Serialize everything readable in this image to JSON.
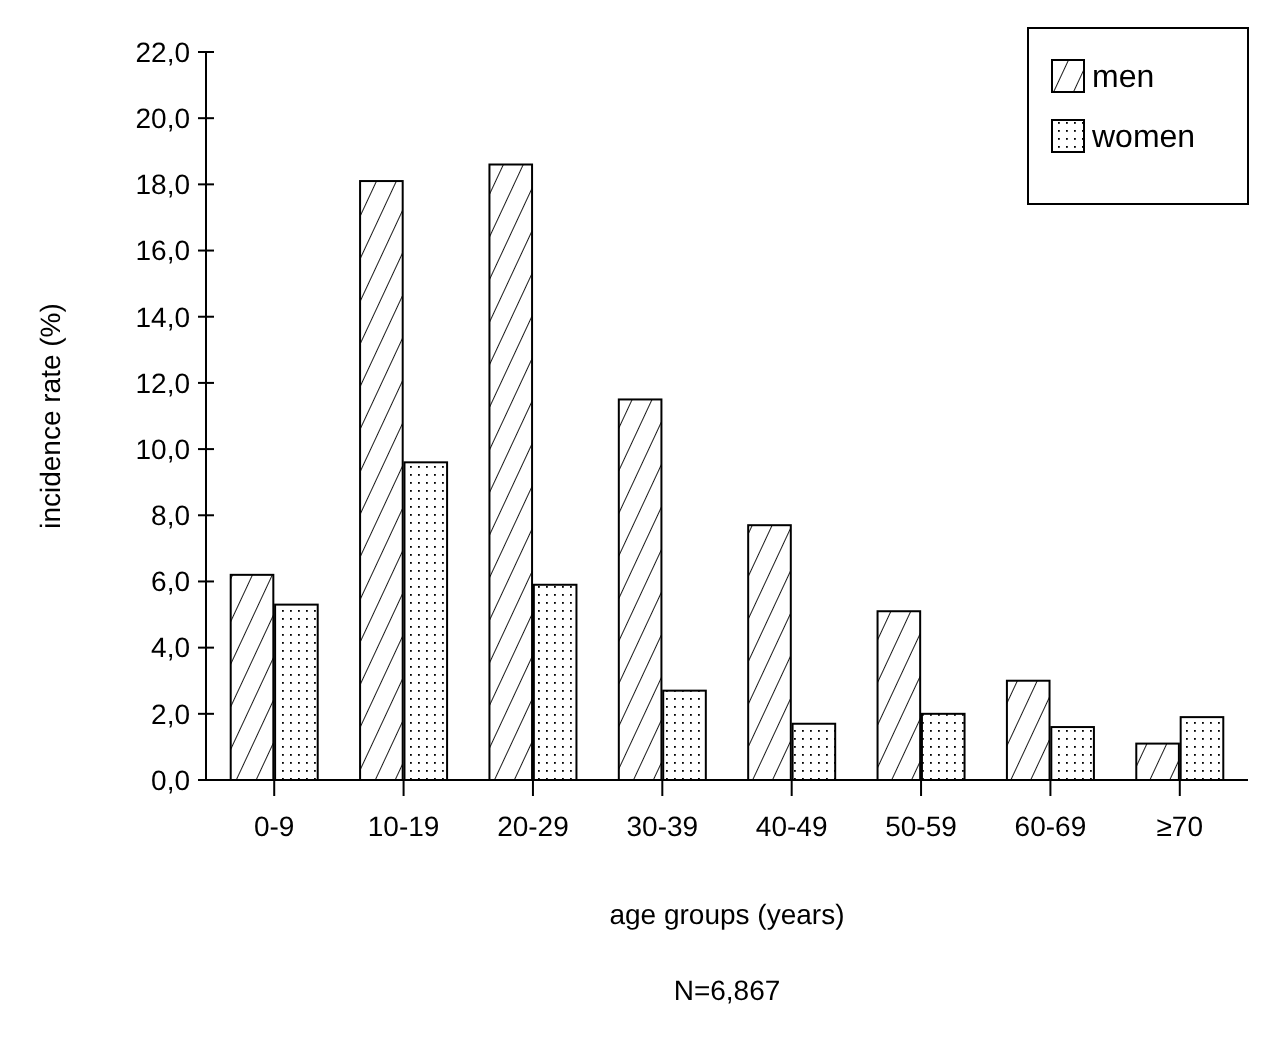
{
  "chart_data": {
    "type": "bar",
    "xlabel": "age groups (years)",
    "ylabel": "incidence rate (%)",
    "categories": [
      "0-9",
      "10-19",
      "20-29",
      "30-39",
      "40-49",
      "50-59",
      "60-69",
      "≥70"
    ],
    "series": [
      {
        "name": "men",
        "color": "#000000",
        "values": [
          6.2,
          18.1,
          18.6,
          11.5,
          7.7,
          5.1,
          3.0,
          1.1
        ]
      },
      {
        "name": "women",
        "color": "#000000",
        "values": [
          5.3,
          9.6,
          5.9,
          2.7,
          1.7,
          2.0,
          1.6,
          1.9
        ]
      }
    ],
    "ylim": [
      0,
      22
    ],
    "yticks": [
      {
        "value": 0,
        "label": "0,0"
      },
      {
        "value": 2,
        "label": "2,0"
      },
      {
        "value": 4,
        "label": "4,0"
      },
      {
        "value": 6,
        "label": "6,0"
      },
      {
        "value": 8,
        "label": "8,0"
      },
      {
        "value": 10,
        "label": "10,0"
      },
      {
        "value": 12,
        "label": "12,0"
      },
      {
        "value": 14,
        "label": "14,0"
      },
      {
        "value": 16,
        "label": "16,0"
      },
      {
        "value": 18,
        "label": "18,0"
      },
      {
        "value": 20,
        "label": "20,0"
      },
      {
        "value": 22,
        "label": "22,0"
      }
    ],
    "legend": "top right",
    "grid": false,
    "annotations": [
      "N=6,867"
    ]
  }
}
